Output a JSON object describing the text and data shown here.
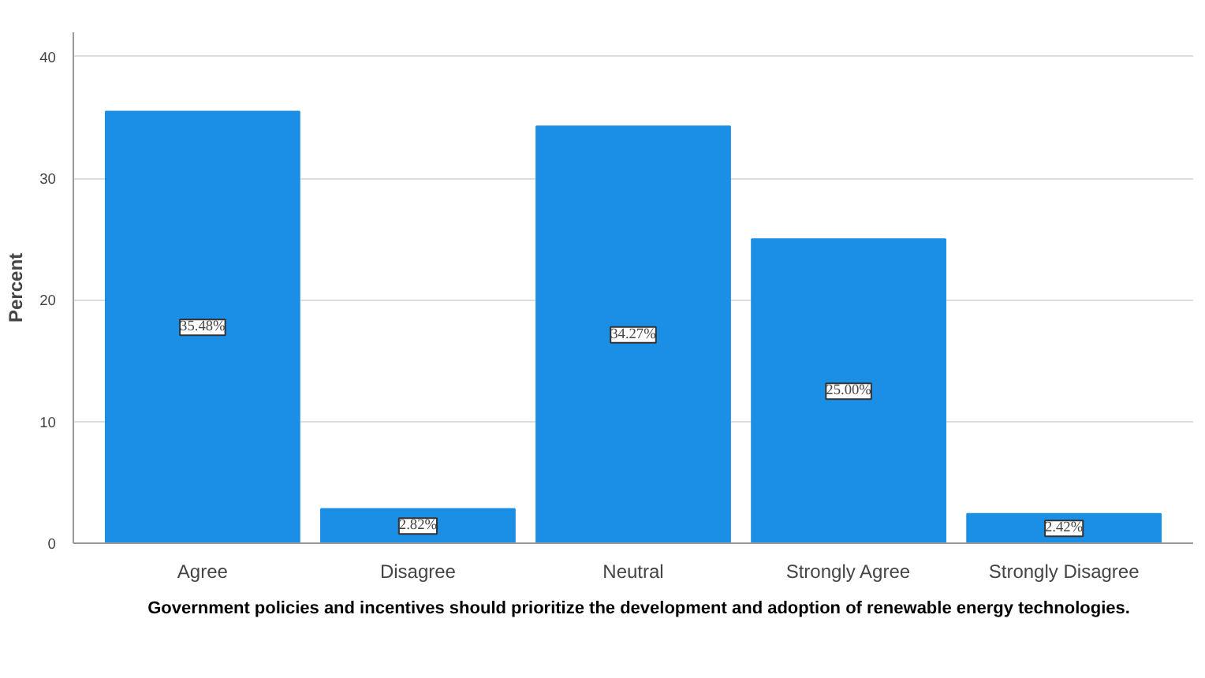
{
  "chart_data": {
    "type": "bar",
    "xlabel": "Government policies and incentives should prioritize the development and adoption of renewable energy technologies.",
    "ylabel": "Percent",
    "categories": [
      "Agree",
      "Disagree",
      "Neutral",
      "Strongly Agree",
      "Strongly Disagree"
    ],
    "values": [
      35.48,
      2.82,
      34.27,
      25.0,
      2.42
    ],
    "value_labels": [
      "35.48%",
      "2.82%",
      "34.27%",
      "25.00%",
      "2.42%"
    ],
    "color": "#1b8ee5",
    "ylim": [
      0,
      42
    ],
    "yticks": [
      0,
      10,
      20,
      30,
      40
    ],
    "grid": "y"
  }
}
